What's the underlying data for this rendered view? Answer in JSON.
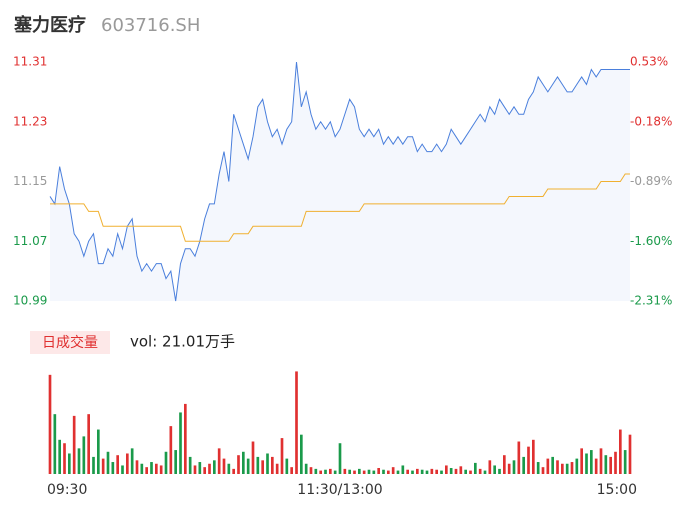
{
  "header": {
    "title": "塞力医疗",
    "code": "603716.SH"
  },
  "chart_data": [
    {
      "type": "line",
      "series": [
        {
          "color": "#4a7fdc",
          "fill": "#f4f7fd",
          "values": [
            11.13,
            11.12,
            11.17,
            11.14,
            11.12,
            11.08,
            11.07,
            11.05,
            11.07,
            11.08,
            11.04,
            11.04,
            11.06,
            11.05,
            11.08,
            11.06,
            11.09,
            11.1,
            11.05,
            11.03,
            11.04,
            11.03,
            11.04,
            11.04,
            11.02,
            11.03,
            10.99,
            11.04,
            11.06,
            11.06,
            11.05,
            11.07,
            11.1,
            11.12,
            11.12,
            11.16,
            11.19,
            11.15,
            11.24,
            11.22,
            11.2,
            11.18,
            11.21,
            11.25,
            11.26,
            11.23,
            11.21,
            11.22,
            11.2,
            11.22,
            11.23,
            11.31,
            11.25,
            11.27,
            11.24,
            11.22,
            11.23,
            11.22,
            11.23,
            11.21,
            11.22,
            11.24,
            11.26,
            11.25,
            11.22,
            11.21,
            11.22,
            11.21,
            11.22,
            11.2,
            11.21,
            11.2,
            11.21,
            11.2,
            11.21,
            11.21,
            11.19,
            11.2,
            11.19,
            11.19,
            11.2,
            11.19,
            11.2,
            11.22,
            11.21,
            11.2,
            11.21,
            11.22,
            11.23,
            11.24,
            11.23,
            11.25,
            11.24,
            11.26,
            11.25,
            11.24,
            11.25,
            11.24,
            11.24,
            11.26,
            11.27,
            11.29,
            11.28,
            11.27,
            11.28,
            11.29,
            11.28,
            11.27,
            11.27,
            11.28,
            11.29,
            11.28,
            11.3,
            11.29,
            11.3,
            11.3,
            11.3,
            11.3,
            11.3,
            11.3,
            11.3
          ]
        },
        {
          "color": "#f0b030",
          "values": [
            11.12,
            11.12,
            11.12,
            11.12,
            11.12,
            11.12,
            11.12,
            11.12,
            11.11,
            11.11,
            11.11,
            11.09,
            11.09,
            11.09,
            11.09,
            11.09,
            11.09,
            11.09,
            11.09,
            11.09,
            11.09,
            11.09,
            11.09,
            11.09,
            11.09,
            11.09,
            11.09,
            11.09,
            11.07,
            11.07,
            11.07,
            11.07,
            11.07,
            11.07,
            11.07,
            11.07,
            11.07,
            11.07,
            11.08,
            11.08,
            11.08,
            11.08,
            11.09,
            11.09,
            11.09,
            11.09,
            11.09,
            11.09,
            11.09,
            11.09,
            11.09,
            11.09,
            11.09,
            11.11,
            11.11,
            11.11,
            11.11,
            11.11,
            11.11,
            11.11,
            11.11,
            11.11,
            11.11,
            11.11,
            11.11,
            11.12,
            11.12,
            11.12,
            11.12,
            11.12,
            11.12,
            11.12,
            11.12,
            11.12,
            11.12,
            11.12,
            11.12,
            11.12,
            11.12,
            11.12,
            11.12,
            11.12,
            11.12,
            11.12,
            11.12,
            11.12,
            11.12,
            11.12,
            11.12,
            11.12,
            11.12,
            11.12,
            11.12,
            11.12,
            11.12,
            11.13,
            11.13,
            11.13,
            11.13,
            11.13,
            11.13,
            11.13,
            11.13,
            11.14,
            11.14,
            11.14,
            11.14,
            11.14,
            11.14,
            11.14,
            11.14,
            11.14,
            11.14,
            11.14,
            11.15,
            11.15,
            11.15,
            11.15,
            11.15,
            11.16,
            11.16
          ]
        }
      ],
      "ylim": [
        10.99,
        11.31
      ],
      "yticks": [
        11.31,
        11.23,
        11.15,
        11.07,
        10.99
      ],
      "ytick_colors": [
        "#e03030",
        "#e03030",
        "#999999",
        "#1a9a4a",
        "#1a9a4a"
      ],
      "y2lim": [
        -2.31,
        0.53
      ],
      "y2ticks": [
        {
          "value": 0.53,
          "label": "0.53%"
        },
        {
          "value": -0.18,
          "label": "-0.18%"
        },
        {
          "value": -0.89,
          "label": "-0.89%"
        },
        {
          "value": -1.6,
          "label": "-1.60%"
        },
        {
          "value": -2.31,
          "label": "-2.31%"
        }
      ],
      "y2tick_colors": [
        "#e03030",
        "#e03030",
        "#999999",
        "#1a9a4a",
        "#1a9a4a"
      ]
    },
    {
      "type": "bar",
      "legend_label": "日成交量",
      "annotation": "vol: 21.01万手",
      "categories": [
        "09:30",
        null,
        null,
        null,
        null,
        null,
        null,
        null,
        null,
        null,
        null,
        null,
        null,
        null,
        null,
        null,
        null,
        null,
        null,
        null,
        null,
        null,
        null,
        null,
        null,
        null,
        null,
        null,
        null,
        null,
        null,
        null,
        null,
        null,
        null,
        null,
        null,
        null,
        null,
        null,
        null,
        null,
        null,
        null,
        null,
        null,
        null,
        null,
        null,
        null,
        null,
        null,
        null,
        null,
        null,
        null,
        null,
        null,
        null,
        null,
        "11:30/13:00",
        null,
        null,
        null,
        null,
        null,
        null,
        null,
        null,
        null,
        null,
        null,
        null,
        null,
        null,
        null,
        null,
        null,
        null,
        null,
        null,
        null,
        null,
        null,
        null,
        null,
        null,
        null,
        null,
        null,
        null,
        null,
        null,
        null,
        null,
        null,
        null,
        null,
        null,
        null,
        null,
        null,
        null,
        null,
        null,
        null,
        null,
        null,
        null,
        null,
        null,
        null,
        null,
        null,
        null,
        null,
        null,
        null,
        null,
        null,
        "15:00"
      ],
      "series": [
        {
          "color": "#e03030",
          "values": [
            5800,
            null,
            null,
            1800,
            null,
            3400,
            null,
            null,
            3500,
            null,
            null,
            900,
            null,
            null,
            1100,
            null,
            1200,
            null,
            800,
            null,
            400,
            null,
            600,
            500,
            null,
            2800,
            null,
            null,
            4100,
            null,
            500,
            null,
            400,
            600,
            null,
            1500,
            900,
            null,
            300,
            1100,
            null,
            null,
            1900,
            null,
            800,
            null,
            1000,
            600,
            2100,
            null,
            400,
            6000,
            null,
            null,
            400,
            null,
            200,
            null,
            300,
            null,
            null,
            300,
            null,
            200,
            null,
            200,
            null,
            null,
            350,
            null,
            200,
            400,
            null,
            null,
            250,
            null,
            300,
            null,
            null,
            300,
            250,
            null,
            500,
            null,
            300,
            450,
            null,
            200,
            null,
            300,
            null,
            800,
            null,
            null,
            1100,
            600,
            null,
            1900,
            null,
            1600,
            2000,
            null,
            400,
            900,
            null,
            800,
            600,
            null,
            700,
            null,
            1500,
            null,
            null,
            900,
            1500,
            null,
            1000,
            1300,
            2600,
            null,
            2300
          ]
        },
        {
          "color": "#1a9a4a",
          "values": [
            null,
            3500,
            2000,
            null,
            1200,
            null,
            1500,
            2200,
            null,
            1000,
            2600,
            null,
            1300,
            700,
            null,
            500,
            null,
            1500,
            null,
            600,
            null,
            700,
            null,
            null,
            1300,
            null,
            1400,
            3600,
            null,
            1000,
            null,
            700,
            null,
            null,
            800,
            null,
            null,
            600,
            null,
            null,
            1300,
            900,
            null,
            1000,
            null,
            1200,
            null,
            null,
            null,
            900,
            null,
            null,
            2300,
            600,
            null,
            300,
            null,
            250,
            null,
            200,
            1800,
            null,
            250,
            null,
            300,
            null,
            250,
            200,
            null,
            250,
            null,
            null,
            200,
            500,
            null,
            200,
            null,
            250,
            200,
            null,
            null,
            200,
            null,
            350,
            null,
            null,
            250,
            null,
            650,
            null,
            200,
            null,
            500,
            300,
            null,
            null,
            800,
            null,
            1000,
            null,
            null,
            700,
            null,
            null,
            1000,
            null,
            null,
            600,
            null,
            900,
            null,
            1200,
            1400,
            null,
            null,
            1100,
            null,
            null,
            null,
            1400,
            null
          ]
        }
      ],
      "ylim": [
        0,
        6200
      ]
    }
  ]
}
